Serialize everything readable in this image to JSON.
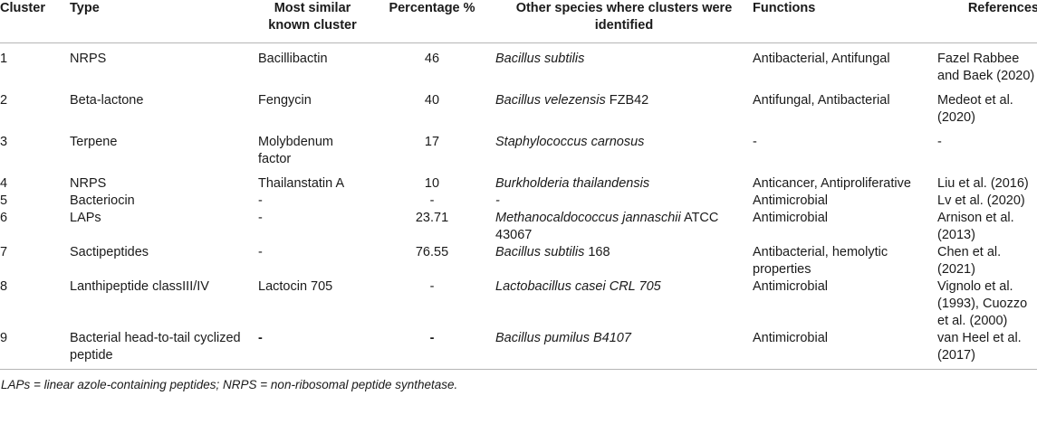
{
  "headers": {
    "cluster": "Cluster",
    "type": "Type",
    "similar": "Most similar known cluster",
    "percentage": "Percentage %",
    "other": "Other species where clusters were identified",
    "functions": "Functions",
    "references": "References"
  },
  "rows": [
    {
      "cluster": "1",
      "type": "NRPS",
      "similar": "Bacillibactin",
      "percentage": "46",
      "other": "Bacillus subtilis",
      "other_suffix": "",
      "functions": "Antibacterial, Antifungal",
      "references": "Fazel Rabbee and Baek (2020)"
    },
    {
      "cluster": "2",
      "type": "Beta-lactone",
      "similar": "Fengycin",
      "percentage": "40",
      "other": "Bacillus velezensis",
      "other_suffix": " FZB42",
      "functions": "Antifungal, Antibacterial",
      "references": "Medeot et al. (2020)"
    },
    {
      "cluster": "3",
      "type": "Terpene",
      "similar": "Molybdenum factor",
      "percentage": "17",
      "other": "Staphylococcus carnosus",
      "other_suffix": "",
      "functions": "-",
      "references": "-"
    },
    {
      "cluster": "4",
      "type": "NRPS",
      "similar": "Thailanstatin A",
      "percentage": "10",
      "other": "Burkholderia thailandensis",
      "other_suffix": "",
      "functions": "Anticancer, Antiproliferative",
      "references": "Liu et al. (2016)"
    },
    {
      "cluster": "5",
      "type": "Bacteriocin",
      "similar": "-",
      "percentage": "-",
      "other": "-",
      "other_suffix": "",
      "functions": "Antimicrobial",
      "references": "Lv et al. (2020)"
    },
    {
      "cluster": "6",
      "type": "LAPs",
      "similar": "-",
      "percentage": "23.71",
      "other": "Methanocaldococcus jannaschii",
      "other_suffix": " ATCC 43067",
      "functions": "Antimicrobial",
      "references": "Arnison et al. (2013)"
    },
    {
      "cluster": "7",
      "type": "Sactipeptides",
      "similar": "-",
      "percentage": "76.55",
      "other": "Bacillus subtilis",
      "other_suffix": " 168",
      "functions": "Antibacterial, hemolytic properties",
      "references": "Chen et al. (2021)"
    },
    {
      "cluster": "8",
      "type": "Lanthipeptide classIII/IV",
      "similar": "Lactocin 705",
      "percentage": "-",
      "other": "Lactobacillus casei CRL 705",
      "other_suffix": "",
      "functions": "Antimicrobial",
      "references": "Vignolo et al. (1993), Cuozzo et al. (2000)"
    },
    {
      "cluster": "9",
      "type": "Bacterial head-to-tail cyclized peptide",
      "similar": "-",
      "percentage": "-",
      "other": "Bacillus pumilus B4107",
      "other_suffix": "",
      "functions": "Antimicrobial",
      "references": "van Heel et al. (2017)"
    }
  ],
  "footnote": "LAPs = linear azole-containing peptides; NRPS = non-ribosomal peptide synthetase."
}
